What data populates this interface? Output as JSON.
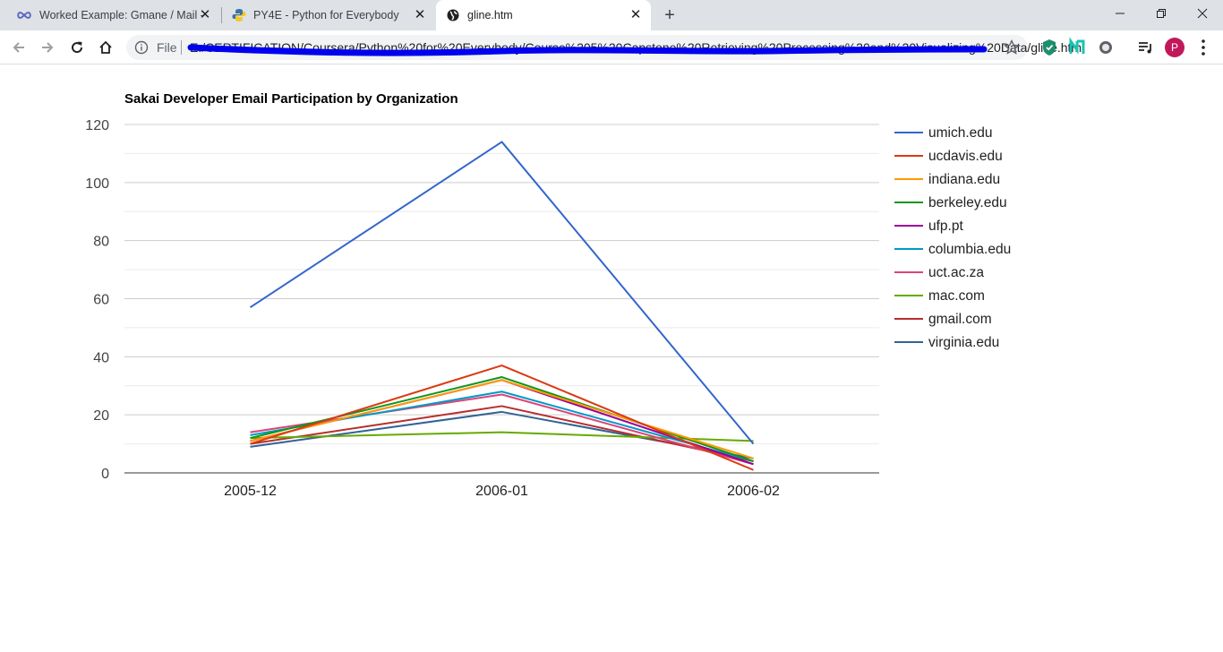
{
  "browser": {
    "tabs": [
      {
        "title": "Worked Example: Gmane / Mail -",
        "icon": "infinity-icon",
        "active": false
      },
      {
        "title": "PY4E - Python for Everybody",
        "icon": "python-icon",
        "active": false
      },
      {
        "title": "gline.htm",
        "icon": "globe-icon",
        "active": true
      }
    ],
    "address": {
      "scheme_label": "File",
      "url": "E:/CERTIFICATION/Coursera/Python%20for%20Everybody/Course%205%20Capstone%20Retrieving%20Processing%20and%20Visualizing%20Data/gline.htm"
    },
    "avatar_letter": "P",
    "colors": {
      "tabbar": "#dee1e6",
      "avatar": "#c2185b"
    }
  },
  "chart_data": {
    "type": "line",
    "title": "Sakai Developer Email Participation by Organization",
    "categories": [
      "2005-12",
      "2006-01",
      "2006-02"
    ],
    "ylim": [
      0,
      120
    ],
    "yticks": [
      0,
      20,
      40,
      60,
      80,
      100,
      120
    ],
    "grid": true,
    "legend_position": "right",
    "series": [
      {
        "name": "umich.edu",
        "color": "#3366cc",
        "values": [
          57,
          114,
          10
        ]
      },
      {
        "name": "ucdavis.edu",
        "color": "#dc3912",
        "values": [
          10,
          37,
          1
        ]
      },
      {
        "name": "indiana.edu",
        "color": "#ff9900",
        "values": [
          11,
          32,
          5
        ]
      },
      {
        "name": "berkeley.edu",
        "color": "#109618",
        "values": [
          12,
          33,
          4
        ]
      },
      {
        "name": "ufp.pt",
        "color": "#990099",
        "values": [
          11,
          32,
          3
        ]
      },
      {
        "name": "columbia.edu",
        "color": "#0099c6",
        "values": [
          13,
          28,
          4
        ]
      },
      {
        "name": "uct.ac.za",
        "color": "#dd4477",
        "values": [
          14,
          27,
          3
        ]
      },
      {
        "name": "mac.com",
        "color": "#66aa00",
        "values": [
          12,
          14,
          11
        ]
      },
      {
        "name": "gmail.com",
        "color": "#b82e2e",
        "values": [
          10,
          23,
          4
        ]
      },
      {
        "name": "virginia.edu",
        "color": "#316395",
        "values": [
          9,
          21,
          5
        ]
      }
    ]
  }
}
